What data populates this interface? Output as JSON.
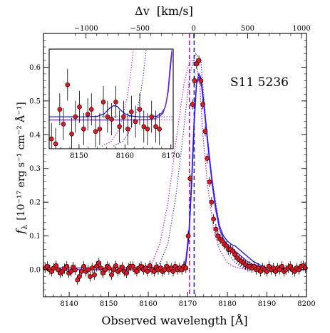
{
  "chart_data": {
    "type": "scatter",
    "object_label": "S11 5236",
    "xlabel": "Observed wavelength [Å]",
    "ylabel_symbol": "f",
    "ylabel_subscript": "λ",
    "ylabel_units": "[10⁻¹⁷ erg s⁻¹ cm⁻² Å⁻¹]",
    "top_axis_label": "Δv  [km/s]",
    "xlim": [
      8133.5,
      8200
    ],
    "ylim": [
      -0.08,
      0.7
    ],
    "x_ticks": [
      8140,
      8150,
      8160,
      8170,
      8180,
      8190,
      8200
    ],
    "y_ticks": [
      0.0,
      0.1,
      0.2,
      0.3,
      0.4,
      0.5,
      0.6
    ],
    "y_tick_labels": [
      "0.0",
      "0.1",
      "0.2",
      "0.3",
      "0.4",
      "0.5",
      "0.6"
    ],
    "top_ticks": [
      -1000,
      -500,
      0,
      500,
      1000
    ],
    "top_tick_labels": [
      "−1000",
      "−500",
      "0",
      "500",
      "1000"
    ],
    "top_axis_zero_wavelength": 8171.5,
    "top_axis_km_s_per_angstrom": 36.7,
    "systemic_lines": [
      {
        "x": 8170.4,
        "color": "#c0139e"
      },
      {
        "x": 8171.6,
        "color": "#2222cc"
      }
    ],
    "data_points": {
      "color": "#e8141e",
      "x": [
        8133.9,
        8134.5,
        8135.1,
        8135.6,
        8136.1,
        8136.7,
        8137.2,
        8137.8,
        8138.3,
        8138.8,
        8139.4,
        8139.9,
        8140.5,
        8141.0,
        8141.5,
        8142.1,
        8142.6,
        8143.1,
        8143.7,
        8144.2,
        8144.8,
        8145.3,
        8145.8,
        8146.4,
        8146.9,
        8147.5,
        8148.0,
        8148.5,
        8149.1,
        8149.6,
        8150.1,
        8150.7,
        8151.2,
        8151.8,
        8152.3,
        8152.8,
        8153.4,
        8153.9,
        8154.5,
        8155.0,
        8155.5,
        8156.1,
        8156.6,
        8157.1,
        8157.7,
        8158.2,
        8158.8,
        8159.3,
        8159.8,
        8160.4,
        8160.9,
        8161.5,
        8162.0,
        8162.5,
        8163.1,
        8163.6,
        8164.1,
        8164.7,
        8165.2,
        8165.8,
        8166.3,
        8166.8,
        8167.4,
        8167.9,
        8168.5,
        8169.0,
        8169.5,
        8170.1,
        8170.6,
        8171.2,
        8171.7,
        8172.2,
        8172.8,
        8173.3,
        8173.8,
        8174.4,
        8174.9,
        8175.5,
        8176.0,
        8176.5,
        8177.1,
        8177.6,
        8178.2,
        8178.7,
        8179.2,
        8179.8,
        8180.3,
        8180.8,
        8181.4,
        8181.9,
        8182.5,
        8183.0,
        8183.5,
        8184.1,
        8184.6,
        8185.2,
        8185.7,
        8186.2,
        8186.8,
        8187.3,
        8187.8,
        8188.4,
        8188.9,
        8189.5,
        8190.0,
        8190.5,
        8191.1,
        8191.6,
        8192.2,
        8192.7,
        8193.2,
        8193.8,
        8194.3,
        8194.8,
        8195.4,
        8195.9,
        8196.5,
        8197.0,
        8197.5,
        8198.1,
        8198.6,
        8199.2,
        8199.7
      ],
      "y": [
        0.005,
        0.01,
        0.0,
        -0.005,
        0.005,
        0.012,
        0.0,
        -0.01,
        -0.005,
        0.003,
        0.01,
        -0.01,
        -0.005,
        0.008,
        0.0,
        -0.03,
        -0.02,
        -0.005,
        0.01,
        -0.005,
        0.0,
        -0.02,
        0.005,
        -0.015,
        0.01,
        0.02,
        0.005,
        -0.01,
        0.0,
        0.01,
        0.005,
        -0.015,
        0.0,
        0.012,
        -0.005,
        0.0,
        0.008,
        -0.005,
        -0.01,
        0.005,
        0.01,
        0.01,
        0.0,
        -0.005,
        0.005,
        0.01,
        0.0,
        0.005,
        -0.005,
        0.012,
        0.0,
        -0.005,
        0.008,
        0.0,
        0.005,
        -0.005,
        0.0,
        0.01,
        0.0,
        0.005,
        -0.005,
        0.01,
        0.0,
        0.005,
        0.0,
        0.01,
        0.005,
        0.1,
        0.27,
        0.49,
        0.56,
        0.61,
        0.62,
        0.56,
        0.49,
        0.41,
        0.33,
        0.26,
        0.2,
        0.15,
        0.12,
        0.1,
        0.09,
        0.085,
        0.075,
        0.07,
        0.06,
        0.06,
        0.055,
        0.045,
        0.035,
        0.03,
        0.025,
        0.02,
        0.015,
        0.01,
        0.01,
        0.005,
        0.01,
        0.0,
        0.005,
        -0.005,
        0.005,
        0.0,
        -0.005,
        0.01,
        0.0,
        0.005,
        -0.005,
        0.005,
        0.0,
        0.01,
        -0.005,
        0.0,
        0.005,
        0.01,
        0.0,
        -0.005,
        0.005,
        0.0,
        0.01,
        0.012,
        0.005
      ]
    },
    "error_bar_sigma": 0.015,
    "model_curves": [
      {
        "color": "#7a1fd6",
        "style": "solid",
        "x": [
          8133.5,
          8168.5,
          8169.5,
          8170.3,
          8171.0,
          8171.6,
          8172.2,
          8172.8,
          8173.4,
          8174.0,
          8174.6,
          8175.4,
          8176.2,
          8177.0,
          8178.0,
          8179.0,
          8180.0,
          8181.0,
          8182.0,
          8183.0,
          8184.0,
          8185.0,
          8186.5,
          8188.0,
          8190.0,
          8200.0
        ],
        "y": [
          0.005,
          0.005,
          0.03,
          0.12,
          0.28,
          0.45,
          0.55,
          0.57,
          0.55,
          0.49,
          0.42,
          0.33,
          0.25,
          0.18,
          0.12,
          0.09,
          0.075,
          0.065,
          0.055,
          0.045,
          0.035,
          0.025,
          0.015,
          0.01,
          0.005,
          0.005
        ]
      },
      {
        "color": "#1a1aee",
        "style": "solid",
        "x": [
          8133.5,
          8168.5,
          8169.5,
          8170.3,
          8171.0,
          8171.6,
          8172.2,
          8172.8,
          8173.4,
          8174.0,
          8174.6,
          8175.4,
          8176.2,
          8177.0,
          8178.0,
          8179.0,
          8180.0,
          8181.0,
          8182.0,
          8183.0,
          8184.0,
          8185.0,
          8186.5,
          8188.0,
          8190.0,
          8200.0
        ],
        "y": [
          0.0,
          0.0,
          0.02,
          0.1,
          0.26,
          0.43,
          0.55,
          0.58,
          0.56,
          0.5,
          0.43,
          0.34,
          0.26,
          0.19,
          0.13,
          0.1,
          0.085,
          0.075,
          0.07,
          0.06,
          0.05,
          0.04,
          0.025,
          0.015,
          0.005,
          0.0
        ]
      },
      {
        "color": "#c227d9",
        "style": "dotted",
        "x": [
          8133.5,
          8158.0,
          8161.0,
          8163.0,
          8165.0,
          8167.0,
          8169.0,
          8170.5,
          8172.0,
          8173.0,
          8173.8,
          8175.0,
          8176.5,
          8178.0,
          8180.0,
          8181.5,
          8183.0,
          8185.0,
          8200.0
        ],
        "y": [
          0.0,
          0.0,
          0.02,
          0.08,
          0.2,
          0.38,
          0.55,
          0.62,
          0.62,
          0.55,
          0.4,
          0.25,
          0.12,
          0.06,
          0.02,
          0.01,
          0.005,
          0.0,
          0.0
        ]
      },
      {
        "color": "#3a3aee",
        "style": "dotted",
        "x": [
          8133.5,
          8160.0,
          8163.0,
          8165.0,
          8167.0,
          8169.0,
          8170.5,
          8172.0,
          8173.3,
          8174.5,
          8176.0,
          8178.0,
          8180.0,
          8182.0,
          8184.0,
          8186.0,
          8200.0
        ],
        "y": [
          0.0,
          0.0,
          0.02,
          0.08,
          0.22,
          0.42,
          0.58,
          0.64,
          0.62,
          0.45,
          0.28,
          0.13,
          0.05,
          0.02,
          0.005,
          0.0,
          0.0
        ]
      }
    ],
    "inset": {
      "xlim": [
        8143.5,
        8170.5
      ],
      "ylim": [
        -0.13,
        0.275
      ],
      "x_ticks": [
        8150,
        8160,
        8170
      ],
      "points_x": [
        8144.0,
        8144.9,
        8145.8,
        8146.6,
        8147.5,
        8148.4,
        8149.2,
        8150.1,
        8151.0,
        8151.9,
        8152.7,
        8153.6,
        8154.5,
        8155.3,
        8156.2,
        8157.1,
        8158.0,
        8158.8,
        8159.7,
        8160.6,
        8161.4,
        8162.3,
        8163.2,
        8164.1,
        8164.9,
        8165.8,
        8166.7,
        8167.5
      ],
      "points_y": [
        -0.09,
        -0.11,
        0.03,
        -0.03,
        0.13,
        -0.07,
        0.0,
        0.04,
        -0.05,
        0.01,
        0.03,
        -0.06,
        -0.05,
        0.06,
        0.0,
        -0.01,
        0.06,
        -0.04,
        0.0,
        -0.05,
        0.02,
        -0.02,
        0.03,
        -0.04,
        -0.05,
        0.0,
        -0.04,
        -0.05
      ],
      "err_x": 0.35,
      "err_y": 0.065,
      "dotted_levels": [
        0.0,
        -0.013
      ],
      "model_curves": [
        {
          "color": "#1a1aee",
          "x": [
            8143.5,
            8152.0,
            8154.0,
            8155.5,
            8156.5,
            8157.5,
            8158.3,
            8159.0,
            8160.0,
            8161.0,
            8163.0,
            8165.0,
            8167.0,
            8168.0,
            8168.8,
            8169.4,
            8169.8,
            8170.2
          ],
          "y": [
            0.0,
            0.0,
            0.002,
            0.012,
            0.032,
            0.045,
            0.042,
            0.028,
            0.012,
            0.004,
            0.0,
            0.0,
            0.003,
            0.015,
            0.04,
            0.1,
            0.18,
            0.26
          ]
        },
        {
          "color": "#7a1fd6",
          "x": [
            8143.5,
            8163.0,
            8165.0,
            8166.5,
            8167.5,
            8168.3,
            8168.9,
            8169.4,
            8169.8,
            8170.2
          ],
          "y": [
            -0.013,
            -0.013,
            -0.012,
            -0.008,
            0.0,
            0.015,
            0.05,
            0.11,
            0.2,
            0.27
          ]
        },
        {
          "color": "#c227d9",
          "style": "dotted",
          "x": [
            8155.0,
            8157.0,
            8158.5,
            8159.5,
            8160.5,
            8161.2,
            8161.8
          ],
          "y": [
            -0.12,
            -0.1,
            -0.06,
            0.0,
            0.08,
            0.17,
            0.27
          ]
        },
        {
          "color": "#3a3aee",
          "style": "dotted",
          "x": [
            8157.5,
            8159.5,
            8161.0,
            8162.2,
            8163.3,
            8164.0,
            8164.6
          ],
          "y": [
            -0.12,
            -0.1,
            -0.06,
            0.0,
            0.08,
            0.17,
            0.27
          ]
        }
      ]
    }
  }
}
